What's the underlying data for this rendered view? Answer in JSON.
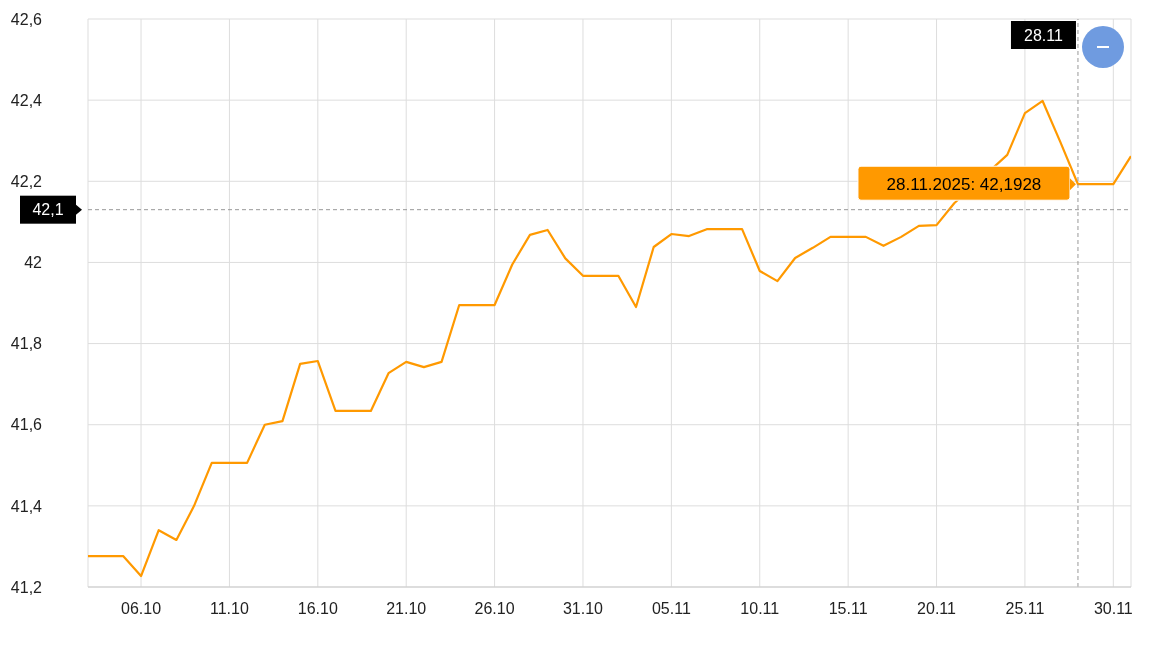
{
  "chart_data": {
    "type": "line",
    "x": [
      "2025-10-03",
      "2025-10-05",
      "2025-10-06",
      "2025-10-07",
      "2025-10-08",
      "2025-10-09",
      "2025-10-10",
      "2025-10-12",
      "2025-10-13",
      "2025-10-14",
      "2025-10-15",
      "2025-10-16",
      "2025-10-17",
      "2025-10-19",
      "2025-10-20",
      "2025-10-21",
      "2025-10-22",
      "2025-10-23",
      "2025-10-24",
      "2025-10-26",
      "2025-10-27",
      "2025-10-28",
      "2025-10-29",
      "2025-10-30",
      "2025-10-31",
      "2025-11-02",
      "2025-11-03",
      "2025-11-04",
      "2025-11-05",
      "2025-11-06",
      "2025-11-07",
      "2025-11-09",
      "2025-11-10",
      "2025-11-11",
      "2025-11-12",
      "2025-11-13",
      "2025-11-14",
      "2025-11-16",
      "2025-11-17",
      "2025-11-18",
      "2025-11-19",
      "2025-11-20",
      "2025-11-21",
      "2025-11-24",
      "2025-11-25",
      "2025-11-26",
      "2025-11-27",
      "2025-11-28",
      "2025-11-30",
      "2025-12-01"
    ],
    "series": [
      {
        "color": "#ff9900",
        "values": [
          41.276,
          41.276,
          41.227,
          41.34,
          41.316,
          41.4,
          41.506,
          41.506,
          41.6,
          41.609,
          41.75,
          41.757,
          41.634,
          41.634,
          41.727,
          41.755,
          41.742,
          41.755,
          41.895,
          41.895,
          41.995,
          42.068,
          42.08,
          42.01,
          41.967,
          41.967,
          41.89,
          42.038,
          42.07,
          42.065,
          42.082,
          42.082,
          41.979,
          41.954,
          42.011,
          42.036,
          42.063,
          42.063,
          42.041,
          42.063,
          42.09,
          42.092,
          42.146,
          42.265,
          42.368,
          42.398,
          42.297,
          42.1928,
          42.193,
          42.262
        ]
      }
    ],
    "xlim": [
      "2025-10-03",
      "2025-12-01"
    ],
    "xticks": [
      {
        "value": "2025-10-06",
        "label": "06.10"
      },
      {
        "value": "2025-10-11",
        "label": "11.10"
      },
      {
        "value": "2025-10-16",
        "label": "16.10"
      },
      {
        "value": "2025-10-21",
        "label": "21.10"
      },
      {
        "value": "2025-10-26",
        "label": "26.10"
      },
      {
        "value": "2025-10-31",
        "label": "31.10"
      },
      {
        "value": "2025-11-05",
        "label": "05.11"
      },
      {
        "value": "2025-11-10",
        "label": "10.11"
      },
      {
        "value": "2025-11-15",
        "label": "15.11"
      },
      {
        "value": "2025-11-20",
        "label": "20.11"
      },
      {
        "value": "2025-11-25",
        "label": "25.11"
      },
      {
        "value": "2025-11-30",
        "label": "30.11"
      }
    ],
    "ylim": [
      41.2,
      42.6
    ],
    "yticks": [
      {
        "value": 41.2,
        "label": "41,2"
      },
      {
        "value": 41.4,
        "label": "41,4"
      },
      {
        "value": 41.6,
        "label": "41,6"
      },
      {
        "value": 41.8,
        "label": "41,8"
      },
      {
        "value": 42,
        "label": "42"
      },
      {
        "value": 42.2,
        "label": "42,2"
      },
      {
        "value": 42.4,
        "label": "42,4"
      },
      {
        "value": 42.6,
        "label": "42,6"
      }
    ],
    "grid": true,
    "ref_lines": [
      {
        "axis": "y",
        "value": 42.13,
        "label": "42,1",
        "color": "#999999",
        "line_style": "dashed"
      },
      {
        "axis": "x",
        "value": "2025-11-28",
        "label": "28.11",
        "color": "#999999",
        "line_style": "dashed"
      }
    ],
    "annotations": [
      {
        "text": "28.11.2025: 42,1928",
        "x": "2025-11-28",
        "y": 42.1928
      }
    ]
  }
}
